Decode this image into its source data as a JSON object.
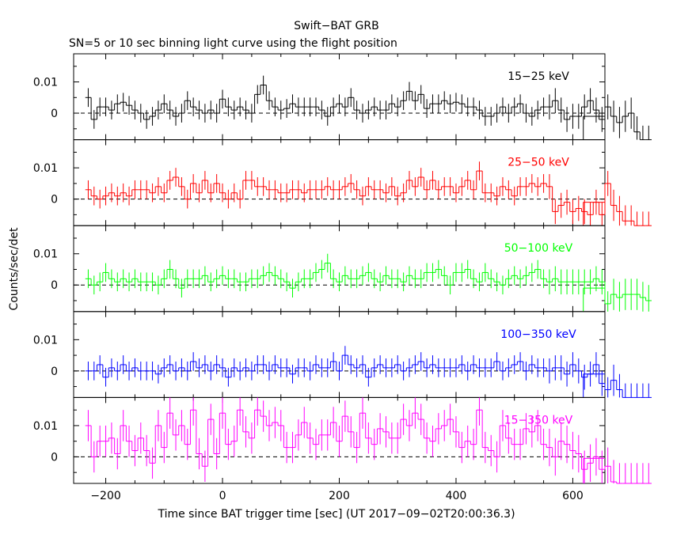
{
  "header": {
    "title": "Swift−BAT GRB",
    "subtitle": "SN=5 or 10 sec binning light curve using the flight position"
  },
  "axes": {
    "xlabel": "Time since BAT trigger time [sec] (UT 2017−09−02T20:00:36.3)",
    "ylabel": "Counts/sec/det"
  },
  "chart_data": {
    "type": "line",
    "style": "step histogram with error bars, stacked panels",
    "x_range": [
      -255,
      655
    ],
    "y_range": [
      -0.0085,
      0.019
    ],
    "x_ticks": [
      -200,
      0,
      200,
      400,
      600
    ],
    "x_tick_labels": [
      "−200",
      "0",
      "200",
      "400",
      "600"
    ],
    "y_ticks": [
      0,
      0.01
    ],
    "y_tick_labels": [
      "0",
      "0.01"
    ],
    "bin_start": -235,
    "bin_width": 10,
    "tail_bin": {
      "x": [
        618,
        655
      ],
      "value": -0.001
    },
    "zero_line": "dashed",
    "panels": [
      {
        "band": "15−25 keV",
        "color": "#000000",
        "values": [
          0.005,
          -0.002,
          0.002,
          0.002,
          0.001,
          0.003,
          0.0035,
          0.0025,
          0.001,
          0.0,
          -0.002,
          -0.001,
          0.001,
          0.003,
          0.001,
          -0.001,
          0.0,
          0.004,
          0.002,
          0.001,
          0.0,
          0.001,
          0.0,
          0.0045,
          0.002,
          0.001,
          0.002,
          0.001,
          0.0,
          0.006,
          0.009,
          0.004,
          0.002,
          0.001,
          0.0015,
          0.003,
          0.002,
          0.002,
          0.002,
          0.002,
          0.001,
          -0.001,
          0.002,
          0.003,
          0.002,
          0.005,
          0.001,
          0.0,
          0.001,
          0.002,
          0.001,
          0.001,
          0.003,
          0.002,
          0.004,
          0.007,
          0.004,
          0.006,
          0.0015,
          0.003,
          0.003,
          0.004,
          0.003,
          0.0035,
          0.003,
          0.002,
          0.002,
          0.001,
          -0.001,
          -0.001,
          0.0,
          0.002,
          0.0,
          0.002,
          0.003,
          0.0,
          -0.001,
          0.001,
          0.002,
          0.002,
          0.004,
          0.001,
          -0.002,
          -0.001,
          -0.001,
          0.002,
          0.004,
          0.001,
          -0.002,
          0.002,
          -0.001,
          -0.003,
          -0.001,
          0.0,
          -0.006,
          -0.009,
          -0.009
        ],
        "errors": [
          0.003,
          0.003,
          0.003,
          0.003,
          0.003,
          0.003,
          0.003,
          0.003,
          0.003,
          0.003,
          0.003,
          0.003,
          0.003,
          0.003,
          0.003,
          0.003,
          0.003,
          0.003,
          0.003,
          0.003,
          0.003,
          0.003,
          0.003,
          0.003,
          0.003,
          0.003,
          0.003,
          0.003,
          0.003,
          0.003,
          0.003,
          0.003,
          0.003,
          0.003,
          0.003,
          0.003,
          0.003,
          0.003,
          0.003,
          0.003,
          0.003,
          0.003,
          0.003,
          0.003,
          0.003,
          0.003,
          0.003,
          0.003,
          0.003,
          0.003,
          0.003,
          0.003,
          0.003,
          0.003,
          0.003,
          0.003,
          0.003,
          0.003,
          0.003,
          0.003,
          0.003,
          0.003,
          0.003,
          0.003,
          0.003,
          0.003,
          0.003,
          0.003,
          0.003,
          0.003,
          0.003,
          0.003,
          0.003,
          0.003,
          0.003,
          0.003,
          0.003,
          0.003,
          0.003,
          0.004,
          0.004,
          0.004,
          0.004,
          0.004,
          0.004,
          0.004,
          0.004,
          0.004,
          0.004,
          0.004,
          0.005,
          0.005,
          0.005,
          0.005,
          0.005,
          0.005,
          0.005
        ]
      },
      {
        "band": "25−50 keV",
        "color": "#ff0000",
        "values": [
          0.003,
          0.001,
          0.0,
          0.001,
          0.002,
          0.001,
          0.002,
          0.001,
          0.003,
          0.003,
          0.003,
          0.002,
          0.004,
          0.002,
          0.006,
          0.007,
          0.004,
          0.0,
          0.005,
          0.002,
          0.006,
          0.002,
          0.005,
          0.002,
          0.0,
          0.002,
          0.0,
          0.006,
          0.006,
          0.004,
          0.004,
          0.003,
          0.003,
          0.002,
          0.002,
          0.003,
          0.003,
          0.002,
          0.003,
          0.003,
          0.003,
          0.004,
          0.003,
          0.003,
          0.004,
          0.005,
          0.003,
          0.001,
          0.004,
          0.003,
          0.003,
          0.002,
          0.004,
          0.001,
          0.002,
          0.006,
          0.004,
          0.007,
          0.003,
          0.006,
          0.003,
          0.004,
          0.004,
          0.002,
          0.004,
          0.006,
          0.003,
          0.009,
          0.002,
          0.002,
          0.001,
          0.004,
          0.003,
          0.001,
          0.004,
          0.004,
          0.005,
          0.004,
          0.005,
          0.004,
          -0.004,
          -0.002,
          -0.001,
          -0.004,
          -0.003,
          -0.004,
          -0.005,
          -0.001,
          -0.005,
          0.005,
          -0.002,
          -0.004,
          -0.007,
          -0.007,
          -0.009,
          -0.009,
          -0.009
        ],
        "errors": [
          0.003,
          0.003,
          0.003,
          0.003,
          0.003,
          0.003,
          0.003,
          0.003,
          0.003,
          0.003,
          0.003,
          0.003,
          0.003,
          0.003,
          0.003,
          0.003,
          0.003,
          0.003,
          0.003,
          0.003,
          0.003,
          0.003,
          0.003,
          0.003,
          0.003,
          0.003,
          0.003,
          0.003,
          0.003,
          0.003,
          0.003,
          0.003,
          0.003,
          0.003,
          0.003,
          0.003,
          0.003,
          0.003,
          0.003,
          0.003,
          0.003,
          0.003,
          0.003,
          0.003,
          0.003,
          0.003,
          0.003,
          0.003,
          0.003,
          0.003,
          0.003,
          0.003,
          0.003,
          0.003,
          0.003,
          0.003,
          0.003,
          0.003,
          0.003,
          0.003,
          0.003,
          0.003,
          0.003,
          0.003,
          0.003,
          0.003,
          0.003,
          0.003,
          0.003,
          0.003,
          0.003,
          0.003,
          0.003,
          0.003,
          0.003,
          0.003,
          0.003,
          0.003,
          0.003,
          0.004,
          0.004,
          0.004,
          0.004,
          0.004,
          0.004,
          0.004,
          0.004,
          0.004,
          0.004,
          0.004,
          0.005,
          0.005,
          0.005,
          0.005,
          0.005,
          0.005,
          0.005
        ]
      },
      {
        "band": "50−100 keV",
        "color": "#00ff00",
        "values": [
          0.002,
          0.0,
          0.001,
          0.004,
          0.002,
          0.001,
          0.002,
          0.001,
          0.002,
          0.001,
          0.001,
          0.001,
          0.0,
          0.002,
          0.005,
          0.002,
          -0.001,
          0.002,
          0.002,
          0.002,
          0.003,
          0.001,
          0.002,
          0.003,
          0.002,
          0.002,
          0.001,
          0.001,
          0.002,
          0.002,
          0.003,
          0.004,
          0.003,
          0.002,
          0.001,
          -0.001,
          0.001,
          0.002,
          0.002,
          0.004,
          0.005,
          0.007,
          0.002,
          0.001,
          0.003,
          0.002,
          0.002,
          0.003,
          0.004,
          0.002,
          0.001,
          0.003,
          0.002,
          0.002,
          0.001,
          0.003,
          0.002,
          0.002,
          0.004,
          0.004,
          0.005,
          0.003,
          0.0,
          0.004,
          0.004,
          0.005,
          0.002,
          0.001,
          0.004,
          0.002,
          0.001,
          0.0,
          0.002,
          0.003,
          0.002,
          0.003,
          0.004,
          0.005,
          0.002,
          0.001,
          0.002,
          0.001,
          0.001,
          0.001,
          0.001,
          0.001,
          0.001,
          0.002,
          0.001,
          -0.006,
          -0.003,
          -0.004,
          -0.003,
          -0.003,
          -0.003,
          -0.004,
          -0.005
        ],
        "errors": [
          0.003,
          0.003,
          0.003,
          0.003,
          0.003,
          0.003,
          0.003,
          0.003,
          0.003,
          0.003,
          0.003,
          0.003,
          0.003,
          0.003,
          0.003,
          0.003,
          0.003,
          0.003,
          0.003,
          0.003,
          0.003,
          0.003,
          0.003,
          0.003,
          0.003,
          0.003,
          0.003,
          0.003,
          0.003,
          0.003,
          0.003,
          0.003,
          0.003,
          0.003,
          0.003,
          0.003,
          0.003,
          0.003,
          0.003,
          0.003,
          0.003,
          0.003,
          0.003,
          0.003,
          0.003,
          0.003,
          0.003,
          0.003,
          0.003,
          0.003,
          0.003,
          0.003,
          0.003,
          0.003,
          0.003,
          0.003,
          0.003,
          0.003,
          0.003,
          0.003,
          0.003,
          0.003,
          0.003,
          0.003,
          0.003,
          0.003,
          0.003,
          0.003,
          0.003,
          0.003,
          0.003,
          0.003,
          0.003,
          0.003,
          0.003,
          0.003,
          0.003,
          0.003,
          0.003,
          0.004,
          0.004,
          0.004,
          0.004,
          0.004,
          0.004,
          0.004,
          0.004,
          0.004,
          0.004,
          0.004,
          0.005,
          0.005,
          0.005,
          0.005,
          0.005,
          0.005,
          0.005
        ]
      },
      {
        "band": "100−350 keV",
        "color": "#0000ff",
        "values": [
          0.0,
          0.0,
          0.002,
          -0.002,
          0.001,
          0.0,
          0.002,
          0.0,
          0.001,
          0.0,
          0.0,
          0.0,
          -0.001,
          0.001,
          0.002,
          0.0,
          0.001,
          0.0,
          0.003,
          0.001,
          0.002,
          0.0,
          0.002,
          0.001,
          -0.002,
          0.001,
          0.0,
          0.001,
          0.0,
          0.002,
          0.002,
          0.0,
          0.002,
          0.001,
          0.001,
          -0.001,
          0.001,
          0.001,
          0.0,
          0.002,
          0.001,
          0.001,
          0.003,
          0.0,
          0.005,
          0.002,
          0.001,
          0.002,
          -0.002,
          0.001,
          0.002,
          0.001,
          0.001,
          0.002,
          0.0,
          0.001,
          0.002,
          0.003,
          0.001,
          0.002,
          0.001,
          0.001,
          0.001,
          0.001,
          0.002,
          0.0,
          0.002,
          0.001,
          0.001,
          0.001,
          0.003,
          0.0,
          0.001,
          0.002,
          0.003,
          0.0,
          0.002,
          0.001,
          0.001,
          0.0,
          0.001,
          0.001,
          -0.001,
          0.002,
          0.0,
          -0.002,
          -0.001,
          0.002,
          -0.004,
          -0.006,
          -0.003,
          -0.006,
          -0.009,
          -0.009,
          -0.009,
          -0.009,
          -0.009
        ],
        "errors": [
          0.003,
          0.003,
          0.003,
          0.003,
          0.003,
          0.003,
          0.003,
          0.003,
          0.003,
          0.003,
          0.003,
          0.003,
          0.003,
          0.003,
          0.003,
          0.003,
          0.003,
          0.003,
          0.003,
          0.003,
          0.003,
          0.003,
          0.003,
          0.003,
          0.003,
          0.003,
          0.003,
          0.003,
          0.003,
          0.003,
          0.003,
          0.003,
          0.003,
          0.003,
          0.003,
          0.003,
          0.003,
          0.003,
          0.003,
          0.003,
          0.003,
          0.003,
          0.003,
          0.003,
          0.003,
          0.003,
          0.003,
          0.003,
          0.003,
          0.003,
          0.003,
          0.003,
          0.003,
          0.003,
          0.003,
          0.003,
          0.003,
          0.003,
          0.003,
          0.003,
          0.003,
          0.003,
          0.003,
          0.003,
          0.003,
          0.003,
          0.003,
          0.003,
          0.003,
          0.003,
          0.003,
          0.003,
          0.003,
          0.003,
          0.003,
          0.003,
          0.003,
          0.003,
          0.003,
          0.004,
          0.004,
          0.004,
          0.004,
          0.004,
          0.004,
          0.004,
          0.004,
          0.004,
          0.004,
          0.004,
          0.005,
          0.005,
          0.005,
          0.005,
          0.005,
          0.005,
          0.005
        ]
      },
      {
        "band": "15−350 keV",
        "color": "#ff00ff",
        "values": [
          0.01,
          0.0,
          0.005,
          0.005,
          0.006,
          0.001,
          0.01,
          0.005,
          0.002,
          0.006,
          0.002,
          -0.002,
          0.01,
          0.003,
          0.014,
          0.007,
          0.01,
          0.004,
          0.015,
          0.001,
          -0.003,
          0.012,
          0.001,
          0.014,
          0.004,
          0.005,
          0.015,
          0.008,
          0.006,
          0.015,
          0.013,
          0.01,
          0.011,
          0.01,
          0.003,
          0.003,
          0.007,
          0.011,
          0.006,
          0.004,
          0.007,
          0.007,
          0.011,
          0.005,
          0.013,
          0.008,
          0.003,
          0.014,
          0.006,
          0.004,
          0.009,
          0.008,
          0.006,
          0.006,
          0.012,
          0.01,
          0.014,
          0.012,
          0.006,
          0.005,
          0.009,
          0.01,
          0.012,
          0.008,
          0.003,
          0.005,
          0.004,
          0.015,
          0.003,
          0.002,
          0.0,
          0.01,
          0.006,
          0.004,
          0.004,
          0.009,
          0.008,
          0.01,
          0.004,
          0.003,
          0.0,
          0.005,
          0.004,
          0.002,
          0.001,
          -0.004,
          -0.002,
          0.0,
          -0.004,
          -0.003,
          -0.008,
          -0.009,
          -0.009,
          -0.009,
          -0.009,
          -0.009,
          -0.009
        ],
        "errors": [
          0.005,
          0.005,
          0.005,
          0.005,
          0.005,
          0.005,
          0.005,
          0.005,
          0.005,
          0.005,
          0.005,
          0.005,
          0.005,
          0.005,
          0.005,
          0.005,
          0.005,
          0.005,
          0.005,
          0.005,
          0.005,
          0.005,
          0.005,
          0.005,
          0.005,
          0.005,
          0.005,
          0.005,
          0.005,
          0.005,
          0.005,
          0.005,
          0.005,
          0.005,
          0.005,
          0.005,
          0.005,
          0.005,
          0.005,
          0.005,
          0.005,
          0.005,
          0.005,
          0.005,
          0.005,
          0.005,
          0.005,
          0.005,
          0.005,
          0.005,
          0.005,
          0.005,
          0.005,
          0.005,
          0.005,
          0.005,
          0.005,
          0.005,
          0.005,
          0.005,
          0.005,
          0.005,
          0.005,
          0.005,
          0.005,
          0.005,
          0.005,
          0.005,
          0.005,
          0.005,
          0.005,
          0.005,
          0.005,
          0.005,
          0.005,
          0.005,
          0.005,
          0.005,
          0.005,
          0.006,
          0.006,
          0.006,
          0.006,
          0.006,
          0.006,
          0.006,
          0.006,
          0.006,
          0.006,
          0.006,
          0.007,
          0.007,
          0.007,
          0.007,
          0.007,
          0.007,
          0.007
        ],
        "tail_value": -0.0005
      }
    ]
  }
}
